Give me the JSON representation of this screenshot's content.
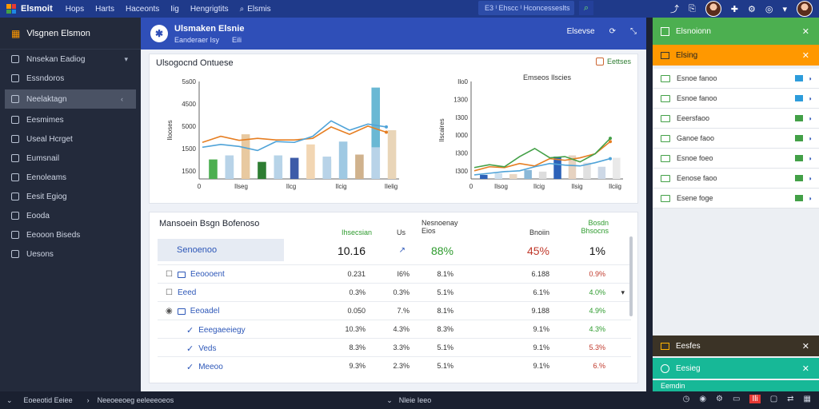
{
  "topbar": {
    "brand": "Elsmoit",
    "nav": [
      "Hops",
      "Harts",
      "Haceonts",
      "Iig",
      "Hengrigtits",
      "Elsmis"
    ],
    "search_text": "E3 ᴵ Ehscc ᴵ Hconcesseslts",
    "search_icon": "search-icon",
    "icons": [
      "share-icon",
      "bookmark-icon",
      "avatar",
      "puzzle-icon",
      "settings-icon",
      "globe-icon",
      "chevron-down-icon",
      "avatar"
    ]
  },
  "sidebar": {
    "header": "Vlsgnen Elsmon",
    "items": [
      {
        "label": "Nnsekan Eadiog",
        "chevron": "▾"
      },
      {
        "label": "Essndoros",
        "chevron": ""
      },
      {
        "label": "Neelaktagn",
        "chevron": "‹",
        "active": true
      },
      {
        "label": "Eesmimes",
        "chevron": ""
      },
      {
        "label": "Useal Hcrget",
        "chevron": ""
      },
      {
        "label": "Eumsnail",
        "chevron": ""
      },
      {
        "label": "Eenoleams",
        "chevron": ""
      },
      {
        "label": "Eesit Egiog",
        "chevron": ""
      },
      {
        "label": "Eooda",
        "chevron": ""
      },
      {
        "label": "Eeooon Biseds",
        "chevron": ""
      },
      {
        "label": "Uesons",
        "chevron": ""
      }
    ]
  },
  "pagehead": {
    "title": "Ulsmaken Elsnie",
    "sub1": "Eanderaer Isy",
    "sub2": "Eili",
    "actions": [
      "Elsevse",
      "⟳",
      "⤡"
    ]
  },
  "overview": {
    "title": "Ulsogocnd Ontuese",
    "button": "Eettses"
  },
  "chart_data": [
    {
      "type": "bar",
      "title": "",
      "ylabel": "Ilooses",
      "yticks": [
        "5s00",
        "4500",
        "5000",
        "1500",
        "1500"
      ],
      "xticks": [
        "0",
        "Ilseg",
        "Ilcg",
        "Ilcig",
        "Ilelig"
      ],
      "series": [
        {
          "values": [
            48,
            50,
            110,
            42,
            58,
            52,
            85,
            48,
            92,
            60,
            225,
            120
          ]
        },
        {
          "values": [
            58,
            38,
            55,
            78
          ]
        }
      ],
      "lines": [
        {
          "color": "#e67e22",
          "values": [
            90,
            105,
            95,
            100,
            96,
            96,
            100,
            128,
            110,
            130,
            115
          ]
        },
        {
          "color": "#4fa3d8",
          "values": [
            78,
            85,
            80,
            70,
            92,
            90,
            105,
            143,
            120,
            135,
            128
          ]
        }
      ]
    },
    {
      "type": "bar",
      "title": "Emseos Ilscies",
      "ylabel": "Ilscaires",
      "yticks": [
        "Ilo0",
        "1300",
        "I300",
        "I000",
        "I300",
        "I300"
      ],
      "xticks": [
        "0",
        "Ilsog",
        "Ilcig",
        "Ilsig",
        "Ilciig"
      ],
      "series": [
        {
          "values": [
            10,
            14,
            12,
            22,
            18,
            55,
            58,
            40,
            30,
            52
          ]
        }
      ],
      "lines": [
        {
          "color": "#e67e22",
          "values": [
            20,
            30,
            28,
            38,
            32,
            50,
            46,
            52,
            62,
            92
          ]
        },
        {
          "color": "#43a047",
          "values": [
            28,
            35,
            30,
            55,
            75,
            52,
            55,
            42,
            62,
            100
          ]
        },
        {
          "color": "#4fa3d8",
          "values": [
            10,
            14,
            18,
            20,
            30,
            38,
            34,
            32,
            40,
            50
          ]
        }
      ]
    }
  ],
  "table": {
    "title": "Mansoein Bsgn Bofenoso",
    "headers": [
      "Ihsecsian",
      "Us",
      "Nesnoenay Eios",
      "Bnoiin",
      "Bosdn Bhsocns"
    ],
    "summary": {
      "label": "Senoenoo",
      "v1": "10.16",
      "v2": "↗",
      "v3": "88%",
      "v4": "45%",
      "v5": "1%"
    },
    "rows": [
      {
        "label": "Eeoooent",
        "icon": "folder-icon",
        "check": "☐",
        "c1": "0.231",
        "c2": "I6%",
        "c3": "8.1%",
        "c4": "6.188",
        "c5": "0.9%",
        "c5class": "red"
      },
      {
        "label": "Eeed",
        "icon": "",
        "check": "☐",
        "c1": "0.3%",
        "c2": "0.3%",
        "c3": "5.1%",
        "c4": "6.1%",
        "c5": "4.0%",
        "c5class": "green",
        "caret": "▾"
      },
      {
        "label": "Eeoadel",
        "icon": "folder-icon",
        "check": "◉",
        "c1": "0.050",
        "c2": "7.%",
        "c3": "8.1%",
        "c4": "9.188",
        "c5": "4.9%",
        "c5class": "green"
      },
      {
        "label": "Eeegaeeiegy",
        "icon": "check-icon",
        "check": "",
        "c1": "10.3%",
        "c2": "4.3%",
        "c3": "8.3%",
        "c4": "9.1%",
        "c5": "4.3%",
        "c5class": "green"
      },
      {
        "label": "Veds",
        "icon": "check-icon",
        "check": "",
        "c1": "8.3%",
        "c2": "3.3%",
        "c3": "5.1%",
        "c4": "9.1%",
        "c5": "5.3%",
        "c5class": "red"
      },
      {
        "label": "Meeoo",
        "icon": "check-icon",
        "check": "",
        "c1": "9.3%",
        "c2": "2.3%",
        "c3": "5.1%",
        "c4": "9.1%",
        "c5": "6.%",
        "c5class": "red"
      }
    ]
  },
  "rpanel": {
    "header": "Elsnoionn",
    "orange": "Elsing",
    "items": [
      {
        "label": "Esnoe fanoo",
        "tagColor": "#2d9cdb"
      },
      {
        "label": "Esnoe fanoo",
        "tagColor": "#2d9cdb"
      },
      {
        "label": "Eeersfaoo",
        "tagColor": "#43a047"
      },
      {
        "label": "Ganoe faoo",
        "tagColor": "#43a047"
      },
      {
        "label": "Esnoe foeo",
        "tagColor": "#43a047"
      },
      {
        "label": "Eenose faoo",
        "tagColor": "#43a047"
      },
      {
        "label": "Esene foge",
        "tagColor": "#43a047"
      }
    ],
    "dark": "Eesfes",
    "teal": "Eesieg",
    "teal2": "Eemdin"
  },
  "statusbar": {
    "left1": "Eoeeotid Eeiee",
    "left2": "Neeoeeoeg eeleeeoeos",
    "mid": "Nleie Ieeo",
    "badge": "Ili"
  }
}
